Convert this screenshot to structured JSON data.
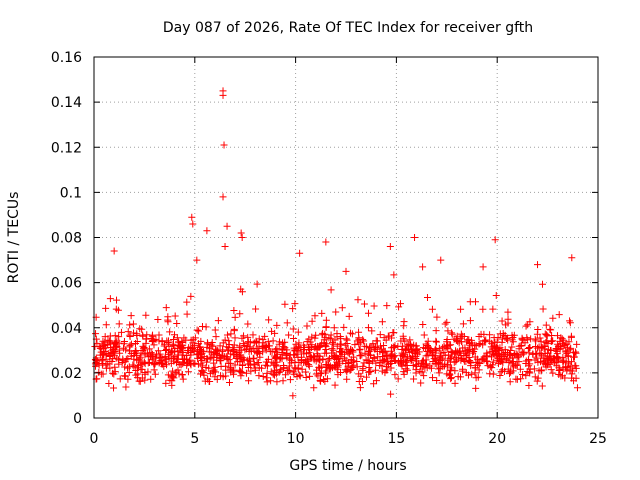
{
  "chart_data": {
    "type": "scatter",
    "title": "Day 087 of 2026, Rate Of TEC Index for receiver gfth",
    "xlabel": "GPS time / hours",
    "ylabel": "ROTI / TECUs",
    "xlim": [
      0,
      25
    ],
    "ylim": [
      0,
      0.16
    ],
    "x_ticks": [
      0,
      5,
      10,
      15,
      20,
      25
    ],
    "y_ticks": [
      0,
      0.02,
      0.04,
      0.06,
      0.08,
      0.1,
      0.12,
      0.14,
      0.16
    ],
    "x_tick_labels": [
      "0",
      "5",
      "10",
      "15",
      "20",
      "25"
    ],
    "y_tick_labels": [
      "0",
      "0.02",
      "0.04",
      "0.06",
      "0.08",
      "0.1",
      "0.12",
      "0.14",
      "0.16"
    ],
    "grid": true,
    "marker": "+",
    "marker_color": "#ff0000",
    "x_range_of_data": [
      0,
      24
    ],
    "typical_band": [
      0.01,
      0.045
    ],
    "outliers": [
      {
        "x": 6.4,
        "y": 0.145
      },
      {
        "x": 6.4,
        "y": 0.143
      },
      {
        "x": 6.45,
        "y": 0.121
      },
      {
        "x": 6.4,
        "y": 0.098
      },
      {
        "x": 4.85,
        "y": 0.089
      },
      {
        "x": 4.9,
        "y": 0.086
      },
      {
        "x": 5.6,
        "y": 0.083
      },
      {
        "x": 6.6,
        "y": 0.085
      },
      {
        "x": 7.3,
        "y": 0.082
      },
      {
        "x": 7.35,
        "y": 0.08
      },
      {
        "x": 11.5,
        "y": 0.078
      },
      {
        "x": 15.9,
        "y": 0.08
      },
      {
        "x": 19.9,
        "y": 0.079
      },
      {
        "x": 14.7,
        "y": 0.076
      },
      {
        "x": 1.0,
        "y": 0.074
      },
      {
        "x": 10.2,
        "y": 0.073
      },
      {
        "x": 17.2,
        "y": 0.07
      },
      {
        "x": 23.7,
        "y": 0.071
      },
      {
        "x": 22.0,
        "y": 0.068
      },
      {
        "x": 6.5,
        "y": 0.076
      },
      {
        "x": 5.1,
        "y": 0.07
      },
      {
        "x": 12.5,
        "y": 0.065
      },
      {
        "x": 16.3,
        "y": 0.067
      },
      {
        "x": 19.3,
        "y": 0.067
      }
    ]
  }
}
